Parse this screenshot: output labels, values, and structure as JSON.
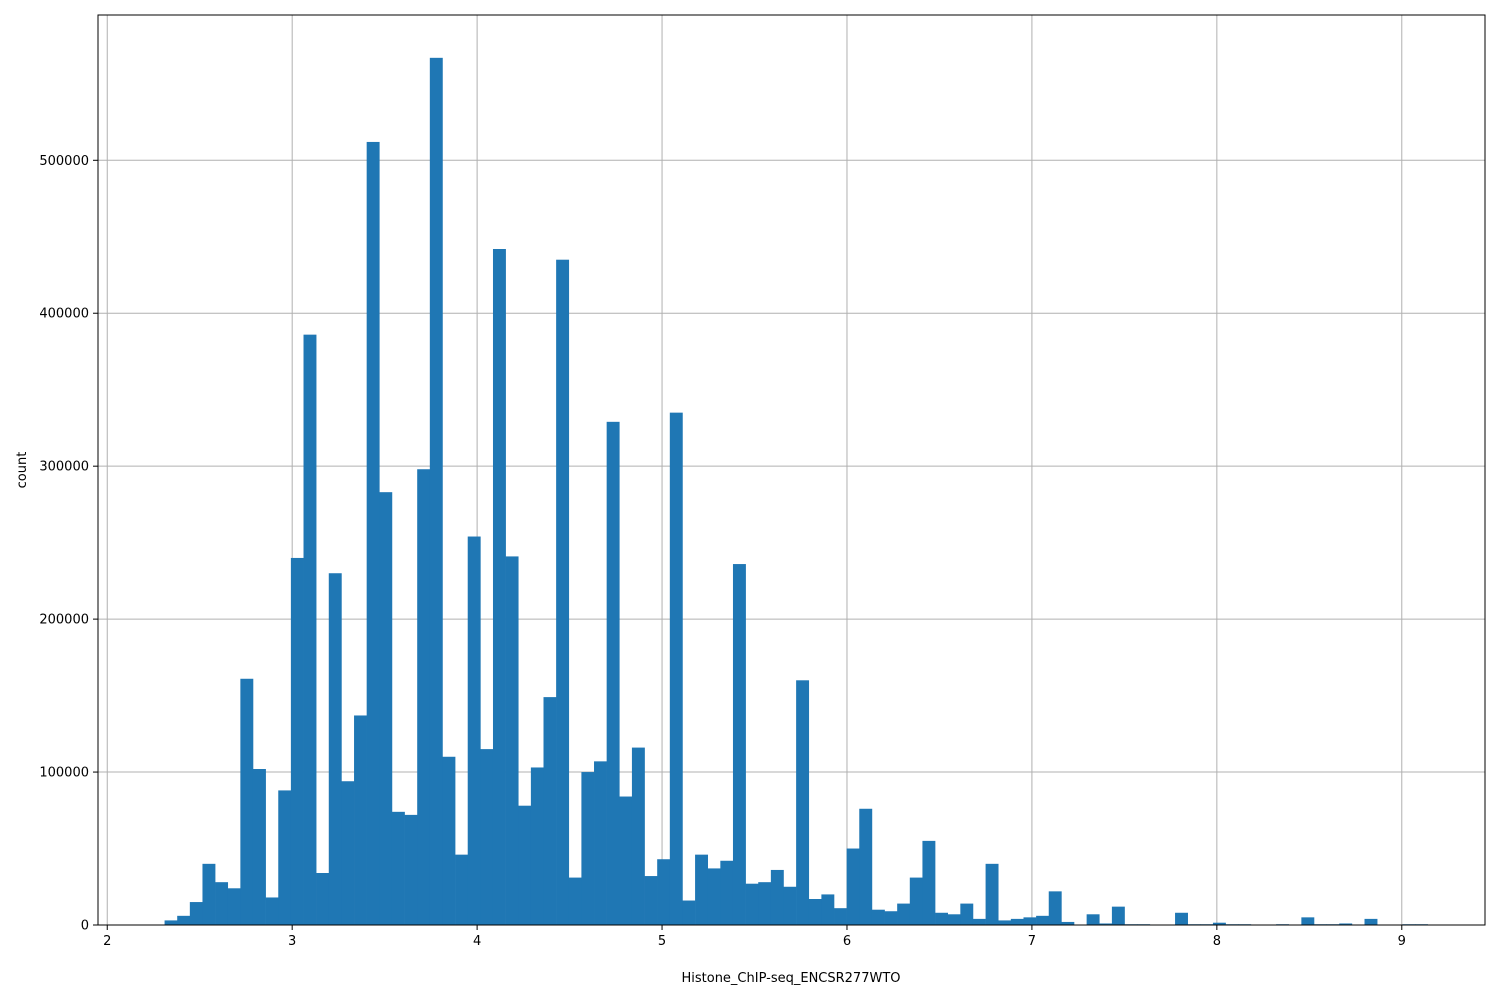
{
  "chart_data": {
    "type": "bar",
    "subtype": "histogram",
    "title": "",
    "xlabel": "Histone_ChIP-seq_ENCSR277WTO",
    "ylabel": "count",
    "xlim": [
      1.95,
      9.45
    ],
    "ylim": [
      0,
      595000
    ],
    "grid": true,
    "bar_color": "#1f77b4",
    "grid_color": "#b0b0b0",
    "x_ticks": [
      2,
      3,
      4,
      5,
      6,
      7,
      8,
      9
    ],
    "x_tick_labels": [
      "2",
      "3",
      "4",
      "5",
      "6",
      "7",
      "8",
      "9"
    ],
    "y_ticks": [
      0,
      100000,
      200000,
      300000,
      400000,
      500000
    ],
    "y_tick_labels": [
      "0",
      "100000",
      "200000",
      "300000",
      "400000",
      "500000"
    ],
    "bins": {
      "start": 2.31,
      "width": 0.0683,
      "values": [
        3000,
        6000,
        15000,
        40000,
        28000,
        24000,
        161000,
        102000,
        18000,
        88000,
        240000,
        386000,
        34000,
        230000,
        94000,
        137000,
        512000,
        283000,
        74000,
        72000,
        298000,
        567000,
        110000,
        46000,
        254000,
        115000,
        442000,
        241000,
        78000,
        103000,
        149000,
        435000,
        31000,
        100000,
        107000,
        329000,
        84000,
        116000,
        32000,
        43000,
        335000,
        16000,
        46000,
        37000,
        42000,
        236000,
        27000,
        28000,
        36000,
        25000,
        160000,
        17000,
        20000,
        11000,
        50000,
        76000,
        10000,
        9000,
        14000,
        31000,
        55000,
        8000,
        7000,
        14000,
        4000,
        40000,
        3000,
        4000,
        5000,
        6000,
        22000,
        2000,
        0,
        7000,
        1000,
        12000,
        500,
        500,
        0,
        0,
        8000,
        500,
        500,
        1500,
        500,
        500,
        0,
        0,
        500,
        0,
        5000,
        500,
        500,
        1000,
        0,
        4000,
        0,
        0,
        500,
        500
      ]
    }
  }
}
